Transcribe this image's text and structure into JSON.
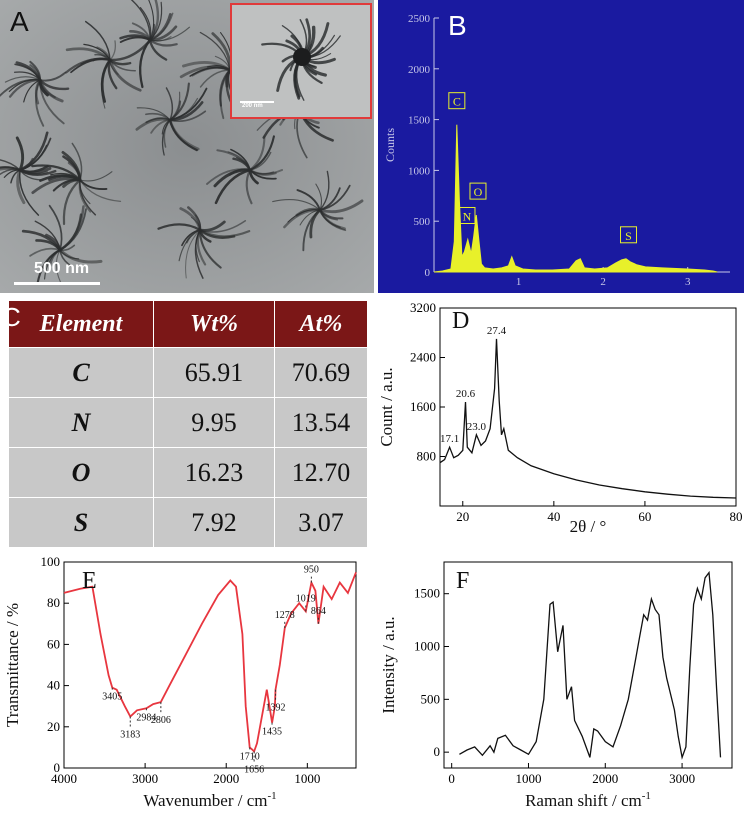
{
  "panel_labels": {
    "a": "A",
    "b": "B",
    "c": "C",
    "d": "D",
    "e": "E",
    "f": "F"
  },
  "panel_a": {
    "scale_main": "500 nm",
    "scale_inset": "200 nm"
  },
  "colors": {
    "eds_bg": "#1a1aa0",
    "eds_fill": "#e8f02a",
    "table_header": "#7b1717",
    "table_body": "#c8c8c8",
    "ftir_line": "#e8363f",
    "inset_border": "#e03a3a"
  },
  "chart_data": [
    {
      "type": "area",
      "panel": "B",
      "ylabel": "Counts",
      "xlabel": "",
      "xlim": [
        0,
        3.5
      ],
      "ylim": [
        0,
        2500
      ],
      "x_ticks": [
        1,
        2,
        3
      ],
      "y_ticks": [
        0,
        500,
        1000,
        1500,
        2000,
        2500
      ],
      "x": [
        0.0,
        0.1,
        0.2,
        0.24,
        0.27,
        0.3,
        0.33,
        0.36,
        0.4,
        0.44,
        0.47,
        0.5,
        0.53,
        0.56,
        0.6,
        0.7,
        0.8,
        0.88,
        0.92,
        0.96,
        1.05,
        1.2,
        1.4,
        1.6,
        1.68,
        1.73,
        1.78,
        1.9,
        2.05,
        2.15,
        2.22,
        2.27,
        2.32,
        2.4,
        2.5,
        2.7,
        3.0,
        3.2,
        3.3,
        3.35
      ],
      "y": [
        0,
        10,
        30,
        300,
        1450,
        700,
        150,
        200,
        320,
        180,
        350,
        560,
        320,
        80,
        40,
        30,
        40,
        60,
        150,
        60,
        30,
        20,
        20,
        30,
        110,
        130,
        40,
        30,
        40,
        90,
        120,
        130,
        100,
        70,
        50,
        40,
        30,
        20,
        10,
        0
      ],
      "peaks": [
        {
          "label": "C",
          "x": 0.27,
          "y": 1450
        },
        {
          "label": "N",
          "x": 0.39,
          "y": 320
        },
        {
          "label": "O",
          "x": 0.52,
          "y": 560
        },
        {
          "label": "S",
          "x": 2.3,
          "y": 130
        }
      ]
    },
    {
      "type": "table",
      "panel": "C",
      "columns": [
        "Element",
        "Wt%",
        "At%"
      ],
      "rows": [
        [
          "C",
          "65.91",
          "70.69"
        ],
        [
          "N",
          "9.95",
          "13.54"
        ],
        [
          "O",
          "16.23",
          "12.70"
        ],
        [
          "S",
          "7.92",
          "3.07"
        ]
      ]
    },
    {
      "type": "line",
      "panel": "D",
      "xlabel": "2θ / °",
      "ylabel": "Count / a.u.",
      "xlim": [
        15,
        80
      ],
      "ylim": [
        0,
        3200
      ],
      "x_ticks": [
        20,
        40,
        60,
        80
      ],
      "y_ticks": [
        800,
        1600,
        2400,
        3200
      ],
      "x": [
        15,
        16,
        17.1,
        18,
        19,
        20,
        20.6,
        21,
        22,
        23.0,
        24,
        25,
        26,
        27,
        27.4,
        28,
        28.5,
        29,
        30,
        32,
        35,
        40,
        45,
        50,
        55,
        60,
        65,
        70,
        75,
        80
      ],
      "y": [
        700,
        750,
        950,
        780,
        820,
        900,
        1680,
        950,
        860,
        1150,
        980,
        1050,
        1250,
        1900,
        2700,
        1700,
        1150,
        1250,
        900,
        780,
        650,
        520,
        420,
        340,
        280,
        230,
        190,
        160,
        140,
        130
      ],
      "annotations": [
        {
          "text": "17.1",
          "x": 17.1,
          "y": 950
        },
        {
          "text": "20.6",
          "x": 20.6,
          "y": 1680
        },
        {
          "text": "23.0",
          "x": 23.0,
          "y": 1150
        },
        {
          "text": "27.4",
          "x": 27.4,
          "y": 2700
        }
      ]
    },
    {
      "type": "line",
      "panel": "E",
      "xlabel": "Wavenumber / cm",
      "xlabel_sup": "-1",
      "ylabel": "Transmittance / %",
      "xlim": [
        4000,
        400
      ],
      "ylim": [
        0,
        100
      ],
      "x_ticks": [
        4000,
        3000,
        2000,
        1000
      ],
      "y_ticks": [
        0,
        20,
        40,
        60,
        80,
        100
      ],
      "x": [
        4000,
        3800,
        3650,
        3550,
        3450,
        3405,
        3350,
        3250,
        3183,
        3100,
        2984,
        2900,
        2806,
        2700,
        2500,
        2300,
        2100,
        1950,
        1880,
        1800,
        1760,
        1710,
        1680,
        1656,
        1620,
        1560,
        1500,
        1435,
        1400,
        1392,
        1340,
        1278,
        1200,
        1100,
        1019,
        950,
        900,
        864,
        800,
        700,
        600,
        500,
        400
      ],
      "y": [
        85,
        87,
        88,
        65,
        45,
        39,
        38,
        30,
        25,
        28,
        29,
        31,
        32,
        40,
        55,
        70,
        84,
        91,
        88,
        65,
        30,
        10,
        9,
        8,
        12,
        25,
        38,
        22,
        30,
        38,
        50,
        68,
        75,
        80,
        76,
        90,
        86,
        70,
        88,
        82,
        90,
        85,
        95
      ],
      "annotations": [
        {
          "text": "3405",
          "x": 3405,
          "y": 39
        },
        {
          "text": "3183",
          "x": 3183,
          "y": 25
        },
        {
          "text": "2984",
          "x": 2984,
          "y": 29
        },
        {
          "text": "2806",
          "x": 2806,
          "y": 32
        },
        {
          "text": "1710",
          "x": 1710,
          "y": 10
        },
        {
          "text": "1656",
          "x": 1656,
          "y": 8
        },
        {
          "text": "1435",
          "x": 1435,
          "y": 22
        },
        {
          "text": "1392",
          "x": 1392,
          "y": 38
        },
        {
          "text": "1278",
          "x": 1278,
          "y": 68
        },
        {
          "text": "1019",
          "x": 1019,
          "y": 76
        },
        {
          "text": "950",
          "x": 950,
          "y": 90
        },
        {
          "text": "864",
          "x": 864,
          "y": 70
        }
      ]
    },
    {
      "type": "line",
      "panel": "F",
      "xlabel": "Raman shift / cm",
      "xlabel_sup": "-1",
      "ylabel": "Intensity / a.u.",
      "xlim": [
        -100,
        3650
      ],
      "ylim": [
        -150,
        1800
      ],
      "x_ticks": [
        0,
        1000,
        2000,
        3000
      ],
      "y_ticks": [
        0,
        500,
        1000,
        1500
      ],
      "x": [
        100,
        200,
        300,
        400,
        500,
        550,
        600,
        700,
        800,
        900,
        1000,
        1100,
        1200,
        1280,
        1320,
        1380,
        1450,
        1500,
        1560,
        1600,
        1700,
        1800,
        1850,
        1900,
        2000,
        2100,
        2200,
        2300,
        2400,
        2450,
        2500,
        2550,
        2600,
        2650,
        2700,
        2750,
        2800,
        2900,
        2950,
        3000,
        3050,
        3100,
        3150,
        3200,
        3250,
        3300,
        3350,
        3400,
        3450,
        3500
      ],
      "y": [
        -20,
        20,
        50,
        -30,
        60,
        0,
        130,
        160,
        60,
        20,
        -20,
        100,
        500,
        1400,
        1420,
        950,
        1200,
        500,
        620,
        300,
        150,
        -50,
        220,
        200,
        100,
        50,
        250,
        500,
        900,
        1100,
        1300,
        1250,
        1450,
        1350,
        1300,
        900,
        700,
        400,
        150,
        -50,
        50,
        800,
        1400,
        1550,
        1450,
        1650,
        1700,
        1300,
        600,
        -50
      ]
    }
  ]
}
